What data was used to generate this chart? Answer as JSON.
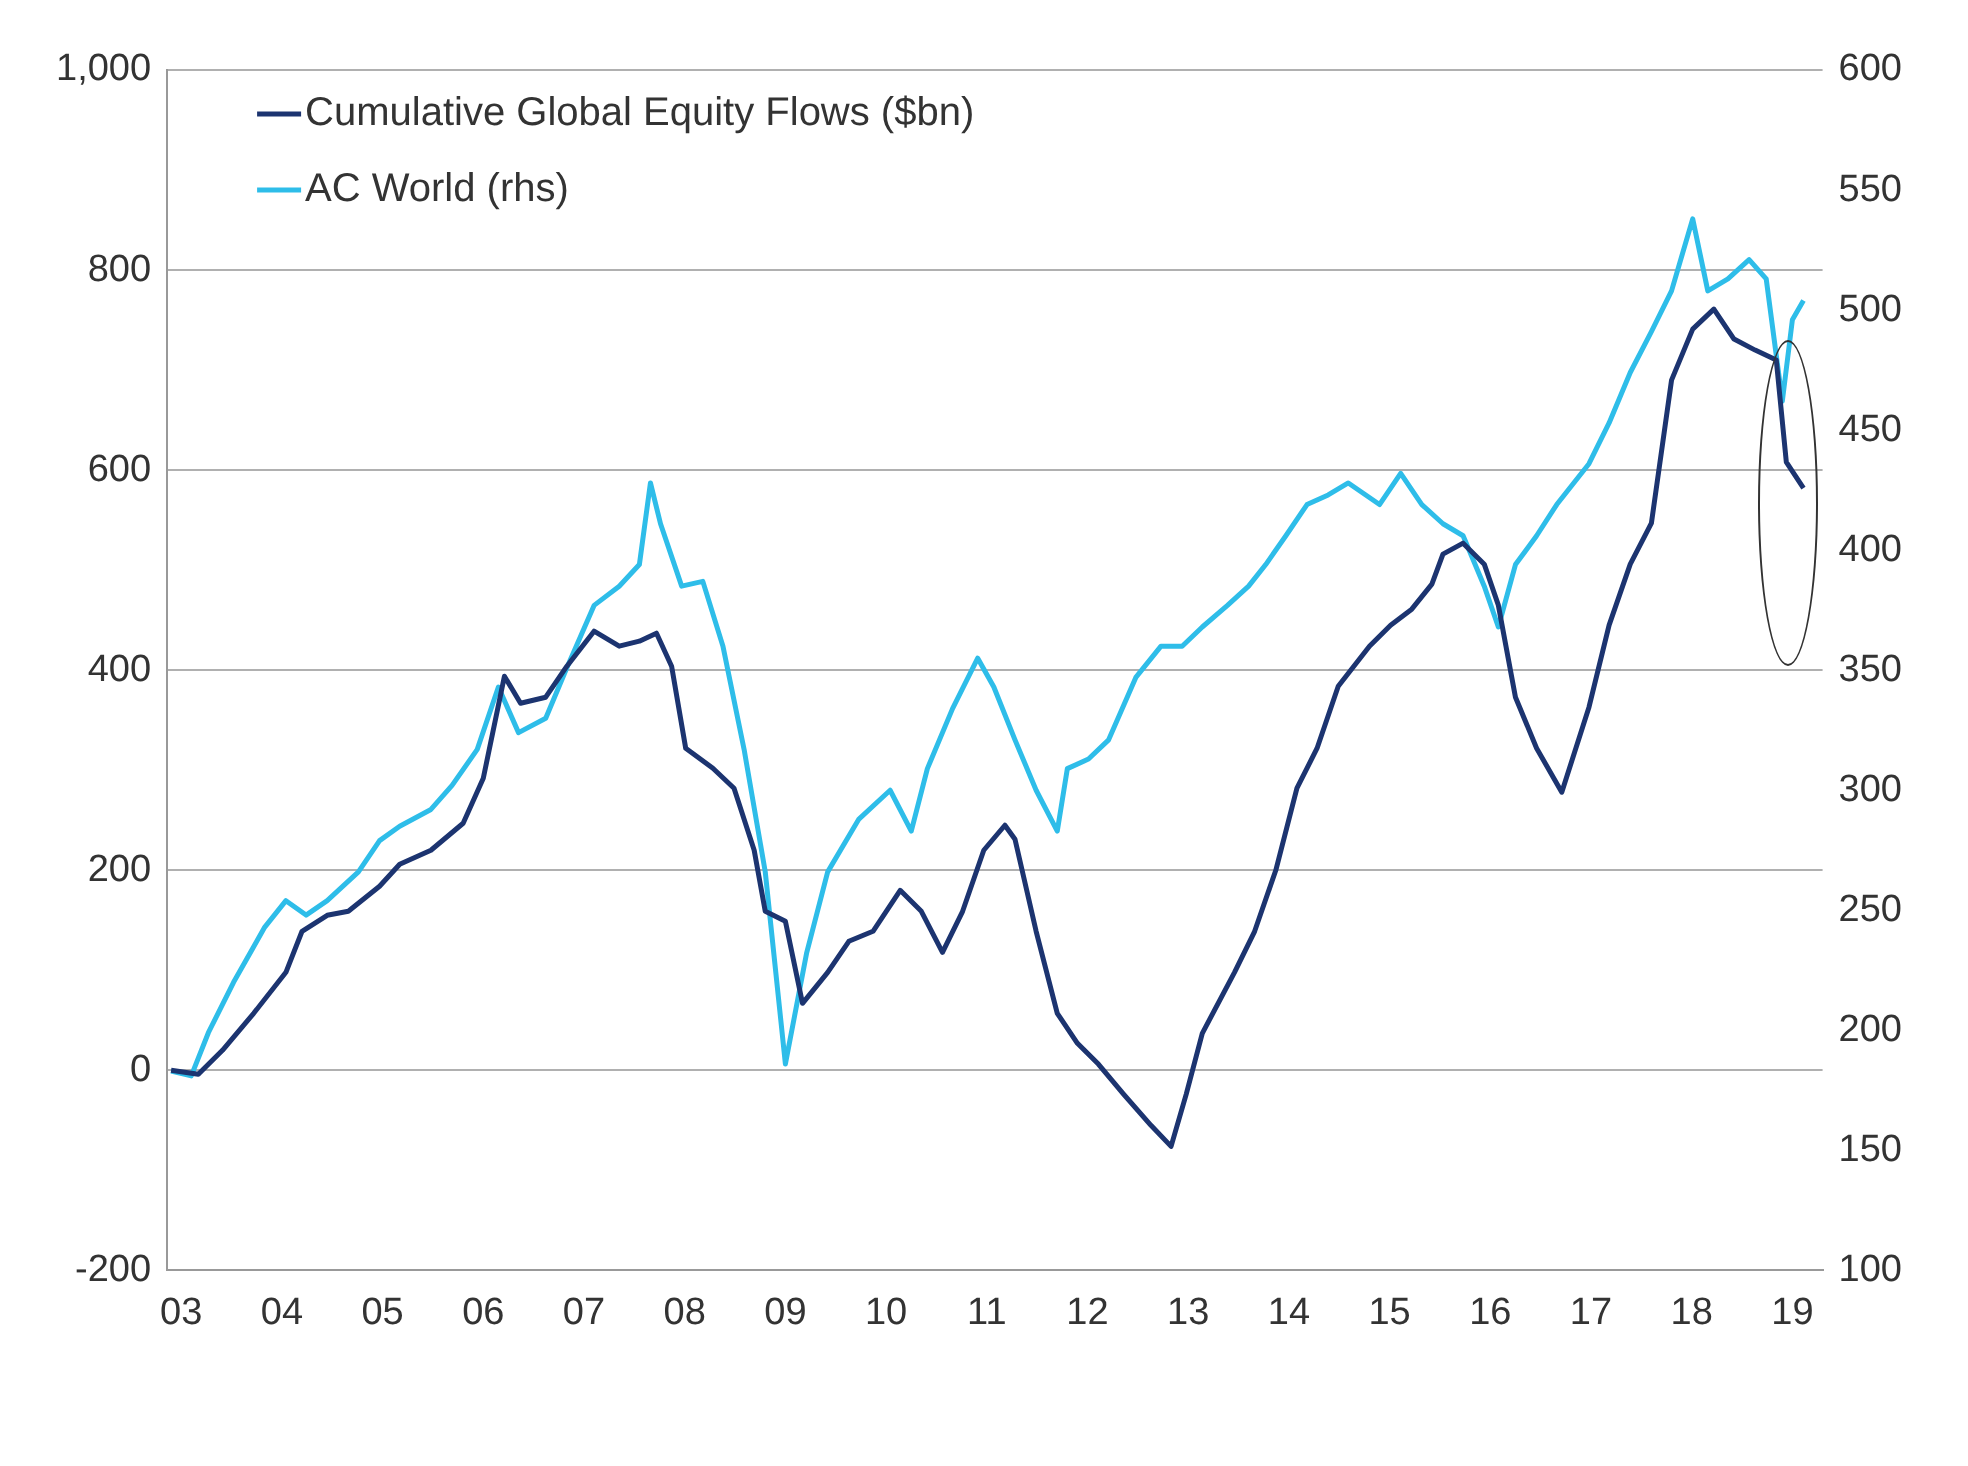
{
  "chart_data": {
    "type": "line",
    "legend": "top left",
    "grid": "y",
    "marker": "none",
    "line_style": "solid",
    "xlim": [
      2002.86,
      2019.3
    ],
    "xticks": [
      {
        "value": 2003,
        "label": "03"
      },
      {
        "value": 2004,
        "label": "04"
      },
      {
        "value": 2005,
        "label": "05"
      },
      {
        "value": 2006,
        "label": "06"
      },
      {
        "value": 2007,
        "label": "07"
      },
      {
        "value": 2008,
        "label": "08"
      },
      {
        "value": 2009,
        "label": "09"
      },
      {
        "value": 2010,
        "label": "10"
      },
      {
        "value": 2011,
        "label": "11"
      },
      {
        "value": 2012,
        "label": "12"
      },
      {
        "value": 2013,
        "label": "13"
      },
      {
        "value": 2014,
        "label": "14"
      },
      {
        "value": 2015,
        "label": "15"
      },
      {
        "value": 2016,
        "label": "16"
      },
      {
        "value": 2017,
        "label": "17"
      },
      {
        "value": 2018,
        "label": "18"
      },
      {
        "value": 2019,
        "label": "19"
      }
    ],
    "ylim": [
      -200,
      1000
    ],
    "yticks": [
      -200,
      0,
      200,
      400,
      600,
      800,
      {
        "value": 1000,
        "label": "1,000"
      }
    ],
    "y2lim": [
      100,
      600
    ],
    "y2ticks": [
      100,
      150,
      200,
      250,
      300,
      350,
      400,
      450,
      500,
      550,
      600
    ],
    "series": [
      {
        "name": "Cumulative Global Equity Flows ($bn)",
        "color": "#1c3470",
        "x": [
          2002.9,
          2003.17,
          2003.41,
          2003.72,
          2004.04,
          2004.2,
          2004.45,
          2004.66,
          2004.97,
          2005.17,
          2005.48,
          2005.8,
          2006.0,
          2006.21,
          2006.37,
          2006.62,
          2006.83,
          2007.1,
          2007.35,
          2007.55,
          2007.72,
          2007.87,
          2008.01,
          2008.28,
          2008.49,
          2008.69,
          2008.8,
          2009.0,
          2009.17,
          2009.42,
          2009.63,
          2009.87,
          2010.14,
          2010.35,
          2010.56,
          2010.76,
          2010.97,
          2011.18,
          2011.28,
          2011.49,
          2011.7,
          2011.9,
          2012.11,
          2012.36,
          2012.63,
          2012.83,
          2012.98,
          2013.14,
          2013.46,
          2013.66,
          2013.87,
          2014.08,
          2014.28,
          2014.49,
          2014.8,
          2015.01,
          2015.22,
          2015.42,
          2015.53,
          2015.73,
          2015.94,
          2016.08,
          2016.25,
          2016.46,
          2016.71,
          2016.98,
          2017.18,
          2017.39,
          2017.6,
          2017.8,
          2018.01,
          2018.22,
          2018.42,
          2018.63,
          2018.84,
          2018.94,
          2019.11
        ],
        "values": [
          0,
          -4,
          20,
          57,
          98,
          139,
          155,
          159,
          184,
          206,
          220,
          247,
          292,
          394,
          367,
          373,
          404,
          439,
          424,
          429,
          437,
          404,
          322,
          302,
          282,
          220,
          159,
          149,
          67,
          98,
          129,
          139,
          180,
          159,
          118,
          159,
          220,
          245,
          231,
          139,
          57,
          27,
          6,
          -24,
          -55,
          -76,
          -24,
          37,
          98,
          139,
          200,
          282,
          322,
          384,
          424,
          445,
          461,
          486,
          516,
          527,
          506,
          465,
          373,
          322,
          278,
          363,
          445,
          506,
          547,
          690,
          741,
          761,
          731,
          720,
          710,
          608,
          582
        ]
      },
      {
        "name": "AC World (rhs)",
        "color": "#2ebde9",
        "axis": "y2",
        "x": [
          2002.9,
          2003.1,
          2003.27,
          2003.52,
          2003.83,
          2004.04,
          2004.24,
          2004.45,
          2004.76,
          2004.97,
          2005.17,
          2005.48,
          2005.69,
          2005.94,
          2006.15,
          2006.35,
          2006.62,
          2006.83,
          2007.1,
          2007.35,
          2007.55,
          2007.66,
          2007.76,
          2007.97,
          2008.18,
          2008.38,
          2008.59,
          2008.8,
          2009.0,
          2009.21,
          2009.42,
          2009.73,
          2010.04,
          2010.25,
          2010.41,
          2010.66,
          2010.91,
          2011.07,
          2011.28,
          2011.49,
          2011.7,
          2011.8,
          2012.01,
          2012.21,
          2012.48,
          2012.73,
          2012.94,
          2013.14,
          2013.39,
          2013.6,
          2013.77,
          2013.97,
          2014.18,
          2014.39,
          2014.59,
          2014.9,
          2015.11,
          2015.32,
          2015.53,
          2015.73,
          2015.94,
          2016.08,
          2016.25,
          2016.46,
          2016.66,
          2016.98,
          2017.18,
          2017.39,
          2017.6,
          2017.8,
          2018.01,
          2018.16,
          2018.36,
          2018.57,
          2018.74,
          2018.9,
          2019.0,
          2019.11
        ],
        "values": [
          183,
          181,
          199,
          220,
          243,
          254,
          248,
          254,
          266,
          279,
          285,
          292,
          302,
          317,
          343,
          324,
          330,
          351,
          377,
          385,
          394,
          428,
          411,
          385,
          387,
          360,
          317,
          266,
          186,
          232,
          266,
          288,
          300,
          283,
          309,
          334,
          355,
          343,
          321,
          300,
          283,
          309,
          313,
          321,
          347,
          360,
          360,
          368,
          377,
          385,
          394,
          406,
          419,
          423,
          428,
          419,
          432,
          419,
          411,
          406,
          385,
          368,
          394,
          406,
          419,
          436,
          453,
          474,
          491,
          508,
          538,
          508,
          513,
          521,
          513,
          462,
          496,
          504
        ]
      }
    ]
  }
}
